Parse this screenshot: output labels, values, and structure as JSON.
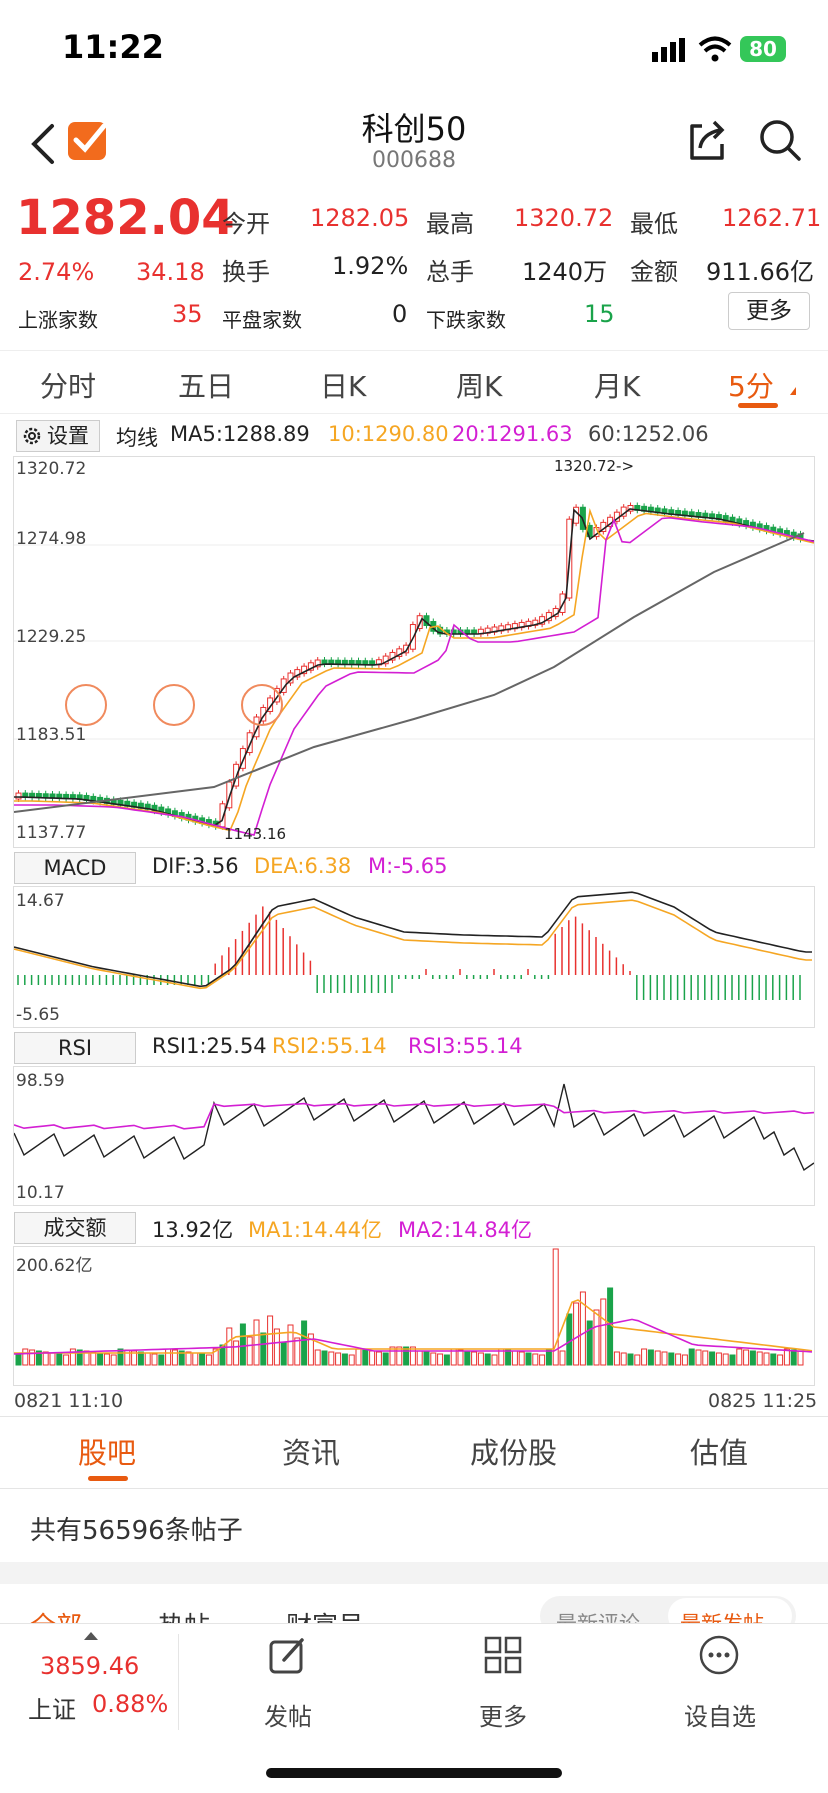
{
  "status": {
    "time": "11:22",
    "battery": "80"
  },
  "header": {
    "title": "科创50",
    "code": "000688"
  },
  "quote": {
    "price": "1282.04",
    "change_pct": "2.74%",
    "change": "34.18",
    "fields": [
      {
        "label": "今开",
        "value": "1282.05"
      },
      {
        "label": "最高",
        "value": "1320.72"
      },
      {
        "label": "最低",
        "value": "1262.71"
      },
      {
        "label": "换手",
        "value": "1.92%"
      },
      {
        "label": "总手",
        "value": "1240万"
      },
      {
        "label": "金额",
        "value": "911.66亿"
      }
    ],
    "up_label": "上涨家数",
    "up_value": "35",
    "flat_label": "平盘家数",
    "flat_value": "0",
    "down_label": "下跌家数",
    "down_value": "15",
    "more_button": "更多"
  },
  "tabs": [
    "分时",
    "五日",
    "日K",
    "周K",
    "月K",
    "5分"
  ],
  "ma_bar": {
    "settings": "设置",
    "label": "均线",
    "ma5": "MA5:1288.89",
    "ma10": "10:1290.80",
    "ma20": "20:1291.63",
    "ma60": "60:1252.06"
  },
  "kline": {
    "y_labels": [
      "1320.72",
      "1274.98",
      "1229.25",
      "1183.51",
      "1137.77"
    ],
    "high_mark": "1320.72->",
    "low_mark": "1143.16"
  },
  "macd": {
    "name": "MACD",
    "dif": "DIF:3.56",
    "dea": "DEA:6.38",
    "m": "M:-5.65",
    "y_top": "14.67",
    "y_bottom": "-5.65"
  },
  "rsi": {
    "name": "RSI",
    "rsi1": "RSI1:25.54",
    "rsi2": "RSI2:55.14",
    "rsi3": "RSI3:55.14",
    "y_top": "98.59",
    "y_bottom": "10.17"
  },
  "volume": {
    "name": "成交额",
    "value": "13.92亿",
    "ma1": "MA1:14.44亿",
    "ma2": "MA2:14.84亿",
    "y_top": "200.62亿"
  },
  "time_axis": {
    "start": "0821 11:10",
    "end": "0825 11:25"
  },
  "section_tabs": [
    "股吧",
    "资讯",
    "成份股",
    "估值"
  ],
  "posts": {
    "count_text": "共有56596条帖子",
    "filters": [
      "全部",
      "热帖",
      "财富号"
    ],
    "sort": [
      "最新评论",
      "最新发帖"
    ]
  },
  "toolbar": {
    "index_value": "3859.46",
    "index_name": "上证",
    "index_change": "0.88%",
    "items": [
      "发帖",
      "更多",
      "设自选"
    ]
  },
  "colors": {
    "up": "#e8312f",
    "down": "#1aa34a",
    "ma10": "#f5a623",
    "ma20": "#d31fd3",
    "ma60": "#666666",
    "accent": "#e85a10"
  }
}
